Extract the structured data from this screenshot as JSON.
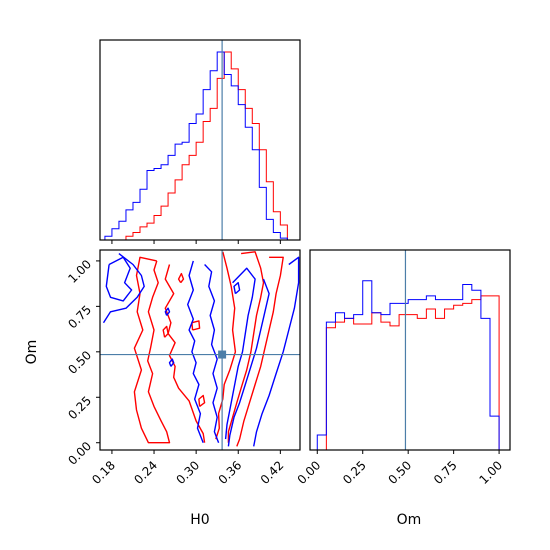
{
  "chart_data": {
    "type": "corner",
    "parameters": [
      "H0",
      "Om"
    ],
    "xlabel": "H0",
    "ylabel": "Om",
    "om_xlabel": "Om",
    "truths": {
      "H0": 0.337,
      "Om": 0.485
    },
    "colors": {
      "red": "#ff0000",
      "blue": "#0000ff",
      "truth": "#4c7ea8",
      "frame": "#000000"
    },
    "ranges": {
      "H0": [
        0.163,
        0.448
      ],
      "Om": [
        -0.04,
        1.06
      ]
    },
    "ticks": {
      "H0": [
        "0.18",
        "0.24",
        "0.30",
        "0.36",
        "0.42"
      ],
      "Om": [
        "0.00",
        "0.25",
        "0.50",
        "0.75",
        "1.00"
      ]
    },
    "hist_H0": {
      "edges": [
        0.17,
        0.18,
        0.19,
        0.2,
        0.21,
        0.22,
        0.23,
        0.24,
        0.25,
        0.26,
        0.27,
        0.28,
        0.29,
        0.3,
        0.31,
        0.32,
        0.33,
        0.34,
        0.35,
        0.36,
        0.37,
        0.38,
        0.39,
        0.4,
        0.41,
        0.42,
        0.43,
        0.44
      ],
      "series": [
        {
          "color": "red",
          "values": [
            0.0,
            0.0,
            0.0,
            0.02,
            0.04,
            0.07,
            0.09,
            0.13,
            0.18,
            0.25,
            0.32,
            0.4,
            0.45,
            0.52,
            0.63,
            0.7,
            0.86,
            1.0,
            0.91,
            0.8,
            0.7,
            0.62,
            0.48,
            0.31,
            0.15,
            0.08,
            0.0
          ]
        },
        {
          "color": "blue",
          "values": [
            0.02,
            0.06,
            0.1,
            0.16,
            0.2,
            0.27,
            0.37,
            0.38,
            0.4,
            0.45,
            0.51,
            0.52,
            0.62,
            0.67,
            0.8,
            0.9,
            1.0,
            0.88,
            0.82,
            0.72,
            0.6,
            0.48,
            0.28,
            0.11,
            0.04,
            0.01,
            0.0
          ]
        }
      ]
    },
    "hist_Om": {
      "edges": [
        0.0,
        0.05,
        0.1,
        0.15,
        0.2,
        0.25,
        0.3,
        0.35,
        0.4,
        0.45,
        0.5,
        0.55,
        0.6,
        0.65,
        0.7,
        0.75,
        0.8,
        0.85,
        0.9,
        0.95,
        1.0
      ],
      "series": [
        {
          "color": "red",
          "values": [
            0.0,
            0.65,
            0.68,
            0.7,
            0.67,
            0.67,
            0.73,
            0.68,
            0.66,
            0.72,
            0.72,
            0.7,
            0.75,
            0.7,
            0.75,
            0.77,
            0.78,
            0.8,
            0.82,
            0.82
          ]
        },
        {
          "color": "blue",
          "values": [
            0.08,
            0.68,
            0.73,
            0.7,
            0.72,
            0.9,
            0.73,
            0.72,
            0.78,
            0.78,
            0.8,
            0.8,
            0.82,
            0.8,
            0.8,
            0.8,
            0.88,
            0.85,
            0.7,
            0.18
          ]
        }
      ]
    },
    "contours": [
      {
        "color": "red",
        "points": [
          [
            0.244,
            1.0
          ],
          [
            0.24,
            0.95
          ],
          [
            0.246,
            0.88
          ],
          [
            0.238,
            0.8
          ],
          [
            0.232,
            0.72
          ],
          [
            0.24,
            0.62
          ],
          [
            0.235,
            0.52
          ],
          [
            0.231,
            0.45
          ],
          [
            0.238,
            0.38
          ],
          [
            0.232,
            0.28
          ],
          [
            0.24,
            0.2
          ],
          [
            0.25,
            0.12
          ],
          [
            0.258,
            0.06
          ],
          [
            0.262,
            0.0
          ],
          [
            0.232,
            0.0
          ],
          [
            0.222,
            0.08
          ],
          [
            0.215,
            0.18
          ],
          [
            0.212,
            0.28
          ],
          [
            0.222,
            0.4
          ],
          [
            0.212,
            0.52
          ],
          [
            0.224,
            0.62
          ],
          [
            0.216,
            0.72
          ],
          [
            0.22,
            0.82
          ],
          [
            0.215,
            0.92
          ],
          [
            0.22,
            1.02
          ],
          [
            0.244,
            1.0
          ]
        ]
      },
      {
        "color": "red",
        "points": [
          [
            0.262,
            0.98
          ],
          [
            0.256,
            0.9
          ],
          [
            0.268,
            0.82
          ],
          [
            0.256,
            0.74
          ],
          [
            0.264,
            0.66
          ],
          [
            0.26,
            0.6
          ],
          [
            0.27,
            0.55
          ],
          [
            0.262,
            0.48
          ],
          [
            0.27,
            0.42
          ],
          [
            0.268,
            0.36
          ],
          [
            0.275,
            0.3
          ],
          [
            0.29,
            0.23
          ],
          [
            0.3,
            0.12
          ],
          [
            0.31,
            0.05
          ],
          [
            0.312,
            0.0
          ]
        ]
      },
      {
        "color": "red",
        "points": [
          [
            0.338,
            1.05
          ],
          [
            0.344,
            0.96
          ],
          [
            0.35,
            0.86
          ],
          [
            0.355,
            0.74
          ],
          [
            0.352,
            0.62
          ],
          [
            0.356,
            0.5
          ],
          [
            0.348,
            0.4
          ],
          [
            0.34,
            0.32
          ],
          [
            0.338,
            0.24
          ],
          [
            0.332,
            0.16
          ],
          [
            0.333,
            0.08
          ],
          [
            0.328,
            0.02
          ]
        ]
      },
      {
        "color": "red",
        "points": [
          [
            0.364,
            1.04
          ],
          [
            0.384,
            1.05
          ],
          [
            0.392,
            0.96
          ],
          [
            0.396,
            0.88
          ],
          [
            0.392,
            0.8
          ],
          [
            0.386,
            0.7
          ],
          [
            0.382,
            0.6
          ],
          [
            0.378,
            0.5
          ],
          [
            0.372,
            0.4
          ],
          [
            0.364,
            0.3
          ],
          [
            0.358,
            0.22
          ],
          [
            0.352,
            0.14
          ],
          [
            0.346,
            0.06
          ],
          [
            0.346,
            0.0
          ]
        ]
      },
      {
        "color": "red",
        "points": [
          [
            0.404,
            1.02
          ],
          [
            0.424,
            1.02
          ],
          [
            0.42,
            0.92
          ],
          [
            0.414,
            0.82
          ],
          [
            0.41,
            0.72
          ],
          [
            0.404,
            0.62
          ],
          [
            0.398,
            0.52
          ],
          [
            0.392,
            0.42
          ],
          [
            0.384,
            0.32
          ],
          [
            0.376,
            0.22
          ],
          [
            0.368,
            0.12
          ],
          [
            0.362,
            0.02
          ],
          [
            0.358,
            -0.02
          ]
        ]
      },
      {
        "color": "red",
        "points": [
          [
            0.255,
            0.58
          ],
          [
            0.26,
            0.6
          ],
          [
            0.258,
            0.64
          ],
          [
            0.253,
            0.62
          ],
          [
            0.255,
            0.58
          ]
        ]
      },
      {
        "color": "red",
        "points": [
          [
            0.278,
            0.88
          ],
          [
            0.282,
            0.9
          ],
          [
            0.279,
            0.93
          ],
          [
            0.275,
            0.9
          ],
          [
            0.278,
            0.88
          ]
        ]
      },
      {
        "color": "red",
        "points": [
          [
            0.295,
            0.62
          ],
          [
            0.305,
            0.63
          ],
          [
            0.304,
            0.67
          ],
          [
            0.294,
            0.66
          ],
          [
            0.295,
            0.62
          ]
        ]
      },
      {
        "color": "red",
        "points": [
          [
            0.305,
            0.2
          ],
          [
            0.312,
            0.22
          ],
          [
            0.31,
            0.26
          ],
          [
            0.304,
            0.24
          ],
          [
            0.305,
            0.2
          ]
        ]
      },
      {
        "color": "blue",
        "points": [
          [
            0.176,
            0.98
          ],
          [
            0.196,
            1.02
          ],
          [
            0.206,
            0.96
          ],
          [
            0.198,
            0.88
          ],
          [
            0.208,
            0.84
          ],
          [
            0.196,
            0.78
          ],
          [
            0.178,
            0.8
          ],
          [
            0.172,
            0.86
          ],
          [
            0.176,
            0.98
          ]
        ]
      },
      {
        "color": "blue",
        "points": [
          [
            0.19,
            1.04
          ],
          [
            0.21,
            0.98
          ],
          [
            0.222,
            0.92
          ],
          [
            0.226,
            0.86
          ],
          [
            0.216,
            0.8
          ],
          [
            0.2,
            0.74
          ],
          [
            0.178,
            0.72
          ],
          [
            0.168,
            0.66
          ]
        ]
      },
      {
        "color": "blue",
        "points": [
          [
            0.296,
            1.0
          ],
          [
            0.29,
            0.92
          ],
          [
            0.296,
            0.84
          ],
          [
            0.288,
            0.76
          ],
          [
            0.296,
            0.68
          ],
          [
            0.29,
            0.62
          ],
          [
            0.298,
            0.56
          ],
          [
            0.294,
            0.5
          ],
          [
            0.3,
            0.44
          ],
          [
            0.296,
            0.38
          ],
          [
            0.304,
            0.32
          ],
          [
            0.298,
            0.24
          ],
          [
            0.306,
            0.16
          ],
          [
            0.302,
            0.08
          ],
          [
            0.31,
            0.0
          ]
        ]
      },
      {
        "color": "blue",
        "points": [
          [
            0.312,
            0.98
          ],
          [
            0.322,
            0.94
          ],
          [
            0.318,
            0.86
          ],
          [
            0.326,
            0.78
          ],
          [
            0.32,
            0.7
          ],
          [
            0.326,
            0.62
          ],
          [
            0.322,
            0.54
          ],
          [
            0.33,
            0.46
          ],
          [
            0.324,
            0.38
          ],
          [
            0.33,
            0.3
          ],
          [
            0.324,
            0.22
          ],
          [
            0.33,
            0.14
          ],
          [
            0.326,
            0.06
          ],
          [
            0.332,
            0.0
          ]
        ]
      },
      {
        "color": "blue",
        "points": [
          [
            0.352,
            0.88
          ],
          [
            0.372,
            0.96
          ],
          [
            0.384,
            0.9
          ],
          [
            0.38,
            0.8
          ],
          [
            0.374,
            0.7
          ],
          [
            0.37,
            0.6
          ],
          [
            0.366,
            0.5
          ],
          [
            0.36,
            0.42
          ],
          [
            0.356,
            0.34
          ],
          [
            0.352,
            0.26
          ],
          [
            0.348,
            0.18
          ],
          [
            0.344,
            0.1
          ],
          [
            0.342,
            0.02
          ]
        ]
      },
      {
        "color": "blue",
        "points": [
          [
            0.396,
            0.9
          ],
          [
            0.404,
            0.82
          ],
          [
            0.398,
            0.72
          ],
          [
            0.392,
            0.62
          ],
          [
            0.386,
            0.52
          ],
          [
            0.378,
            0.42
          ],
          [
            0.37,
            0.32
          ],
          [
            0.362,
            0.22
          ],
          [
            0.354,
            0.14
          ],
          [
            0.348,
            0.04
          ],
          [
            0.346,
            -0.02
          ]
        ]
      },
      {
        "color": "blue",
        "points": [
          [
            0.432,
            0.98
          ],
          [
            0.446,
            1.02
          ],
          [
            0.446,
            0.88
          ],
          [
            0.44,
            0.74
          ],
          [
            0.432,
            0.62
          ],
          [
            0.424,
            0.5
          ],
          [
            0.414,
            0.38
          ],
          [
            0.404,
            0.26
          ],
          [
            0.394,
            0.16
          ],
          [
            0.386,
            0.06
          ],
          [
            0.382,
            -0.02
          ]
        ]
      },
      {
        "color": "blue",
        "points": [
          [
            0.356,
            0.82
          ],
          [
            0.362,
            0.84
          ],
          [
            0.36,
            0.88
          ],
          [
            0.354,
            0.86
          ],
          [
            0.356,
            0.82
          ]
        ]
      },
      {
        "color": "blue",
        "points": [
          [
            0.264,
            0.42
          ],
          [
            0.268,
            0.44
          ],
          [
            0.266,
            0.46
          ],
          [
            0.262,
            0.44
          ],
          [
            0.264,
            0.42
          ]
        ]
      },
      {
        "color": "blue",
        "points": [
          [
            0.258,
            0.7
          ],
          [
            0.262,
            0.72
          ],
          [
            0.26,
            0.74
          ],
          [
            0.256,
            0.72
          ],
          [
            0.258,
            0.7
          ]
        ]
      }
    ]
  }
}
